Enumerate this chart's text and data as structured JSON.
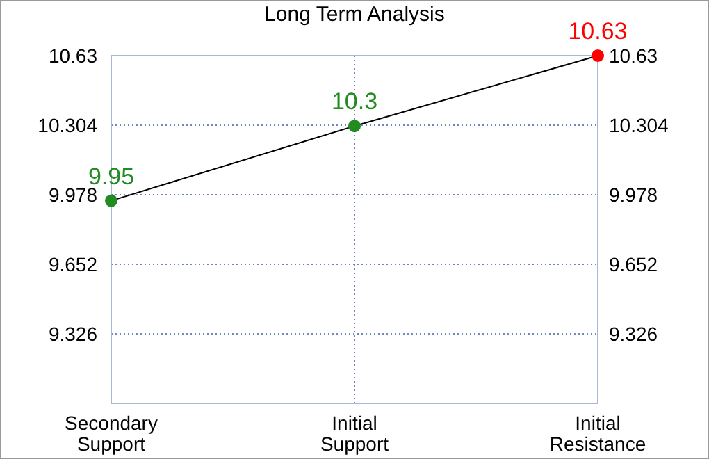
{
  "chart_data": {
    "type": "line",
    "title": "Long Term Analysis",
    "categories": [
      "Secondary\nSupport",
      "Initial\nSupport",
      "Initial\nResistance"
    ],
    "series": [
      {
        "color": "#000000",
        "colors": [
          "#228b22",
          "#228b22",
          "#ff0000"
        ],
        "values": [
          9.95,
          10.3,
          10.63
        ]
      }
    ],
    "ylim": [
      9.0,
      10.63
    ],
    "yticks": [
      9.326,
      9.652,
      9.978,
      10.304,
      10.63
    ],
    "y2lim": [
      9.0,
      10.63
    ],
    "y2ticks": [
      9.326,
      9.652,
      9.978,
      10.304,
      10.63
    ],
    "grid": true,
    "marker": "circle",
    "data_labels": true
  }
}
